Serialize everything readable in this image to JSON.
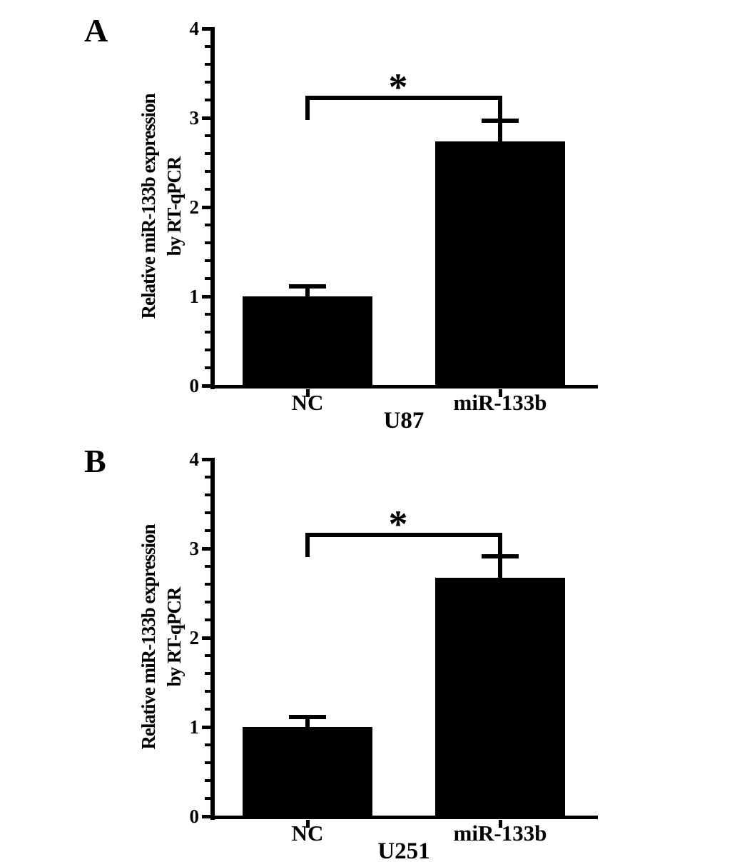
{
  "figure": {
    "background": "#ffffff",
    "ink_color": "#000000",
    "bar_color": "#000000"
  },
  "chart_data": [
    {
      "type": "bar",
      "panel_letter": "A",
      "ylabel_line1": "Relative miR-133b expression",
      "ylabel_line2": "by RT-qPCR",
      "xlabel": "U87",
      "categories": [
        "NC",
        "miR-133b"
      ],
      "values": [
        1.0,
        2.74
      ],
      "errors_upper": [
        0.11,
        0.23
      ],
      "ylim": [
        0,
        4
      ],
      "yticks": [
        0,
        1,
        2,
        3,
        4
      ],
      "ytick_labels": [
        "0",
        "1",
        "2",
        "3",
        "4"
      ],
      "minor_tick_step": 0.2,
      "grid": false,
      "legend": false,
      "bar_color": "#000000",
      "significance": {
        "marker": "*",
        "between": [
          "NC",
          "miR-133b"
        ],
        "bracket_y": 3.25
      }
    },
    {
      "type": "bar",
      "panel_letter": "B",
      "ylabel_line1": "Relative miR-133b expression",
      "ylabel_line2": "by RT-qPCR",
      "xlabel": "U251",
      "categories": [
        "NC",
        "miR-133b"
      ],
      "values": [
        1.0,
        2.67
      ],
      "errors_upper": [
        0.11,
        0.24
      ],
      "ylim": [
        0,
        4
      ],
      "yticks": [
        0,
        1,
        2,
        3,
        4
      ],
      "ytick_labels": [
        "0",
        "1",
        "2",
        "3",
        "4"
      ],
      "minor_tick_step": 0.2,
      "grid": false,
      "legend": false,
      "bar_color": "#000000",
      "significance": {
        "marker": "*",
        "between": [
          "NC",
          "miR-133b"
        ],
        "bracket_y": 3.18
      }
    }
  ]
}
